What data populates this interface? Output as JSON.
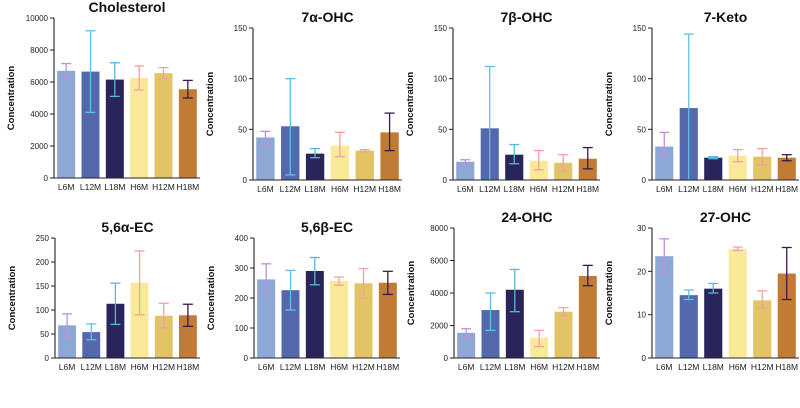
{
  "figure": {
    "colors": [
      "#8ea8d6",
      "#5468ad",
      "#29255b",
      "#fbe99a",
      "#e2c365",
      "#c07c34"
    ],
    "error_colors": [
      "#c08fe0",
      "#5fc0e6",
      "#56b8dc",
      "#f4a0a0",
      "#f0a3a3",
      "#3a1a4a"
    ]
  },
  "chart_data": [
    {
      "type": "bar",
      "title": "Cholesterol",
      "ylabel": "Concentration",
      "xlabel": "",
      "categories": [
        "L6M",
        "L12M",
        "L18M",
        "H6M",
        "H12M",
        "H18M"
      ],
      "values": [
        6700,
        6650,
        6150,
        6250,
        6550,
        5550
      ],
      "errors": [
        [
          6250,
          7150
        ],
        [
          4100,
          9200
        ],
        [
          5100,
          7200
        ],
        [
          5500,
          7000
        ],
        [
          6200,
          6900
        ],
        [
          5000,
          6100
        ]
      ],
      "ylim": [
        0,
        10000
      ],
      "yticks": [
        "0",
        "2000",
        "4000",
        "6000",
        "8000",
        "10000"
      ]
    },
    {
      "type": "bar",
      "title": "7α-OHC",
      "ylabel": "Concentration",
      "xlabel": "",
      "categories": [
        "L6M",
        "L12M",
        "L18M",
        "H6M",
        "H12M",
        "H18M"
      ],
      "values": [
        42,
        53,
        26,
        34,
        29,
        47
      ],
      "errors": [
        [
          35,
          48
        ],
        [
          5,
          100
        ],
        [
          22,
          31
        ],
        [
          23,
          47
        ],
        [
          28,
          30
        ],
        [
          29,
          66
        ]
      ],
      "ylim": [
        0,
        150
      ],
      "yticks": [
        "0",
        "50",
        "100",
        "150"
      ]
    },
    {
      "type": "bar",
      "title": "7β-OHC",
      "ylabel": "Concentration",
      "xlabel": "",
      "categories": [
        "L6M",
        "L12M",
        "L18M",
        "H6M",
        "H12M",
        "H18M"
      ],
      "values": [
        18,
        51,
        25,
        19,
        17,
        21
      ],
      "errors": [
        [
          15,
          20
        ],
        [
          0,
          112
        ],
        [
          16,
          35
        ],
        [
          10,
          29
        ],
        [
          9,
          25
        ],
        [
          11,
          32
        ]
      ],
      "ylim": [
        0,
        150
      ],
      "yticks": [
        "0",
        "50",
        "100",
        "150"
      ]
    },
    {
      "type": "bar",
      "title": "7-Keto",
      "ylabel": "Concentration",
      "xlabel": "",
      "categories": [
        "L6M",
        "L12M",
        "L18M",
        "H6M",
        "H12M",
        "H18M"
      ],
      "values": [
        33,
        71,
        22,
        24,
        23,
        22
      ],
      "errors": [
        [
          24,
          47
        ],
        [
          0,
          144
        ],
        [
          21,
          23
        ],
        [
          18,
          30
        ],
        [
          15,
          31
        ],
        [
          19,
          25
        ]
      ],
      "ylim": [
        0,
        150
      ],
      "yticks": [
        "0",
        "50",
        "100",
        "150"
      ]
    },
    {
      "type": "bar",
      "title": "5,6α-EC",
      "ylabel": "Concentration",
      "xlabel": "",
      "categories": [
        "L6M",
        "L12M",
        "L18M",
        "H6M",
        "H12M",
        "H18M"
      ],
      "values": [
        68,
        54,
        113,
        157,
        88,
        89
      ],
      "errors": [
        [
          44,
          92
        ],
        [
          38,
          71
        ],
        [
          70,
          156
        ],
        [
          90,
          223
        ],
        [
          63,
          114
        ],
        [
          66,
          112
        ]
      ],
      "ylim": [
        0,
        250
      ],
      "yticks": [
        "0",
        "50",
        "100",
        "150",
        "200",
        "250"
      ]
    },
    {
      "type": "bar",
      "title": "5,6β-EC",
      "ylabel": "Concentration",
      "xlabel": "",
      "categories": [
        "L6M",
        "L12M",
        "L18M",
        "H6M",
        "H12M",
        "H18M"
      ],
      "values": [
        262,
        226,
        290,
        257,
        249,
        251
      ],
      "errors": [
        [
          210,
          314
        ],
        [
          160,
          292
        ],
        [
          244,
          335
        ],
        [
          243,
          270
        ],
        [
          200,
          298
        ],
        [
          212,
          289
        ]
      ],
      "ylim": [
        0,
        400
      ],
      "yticks": [
        "0",
        "100",
        "200",
        "300",
        "400"
      ]
    },
    {
      "type": "bar",
      "title": "24-OHC",
      "ylabel": "Concentration",
      "xlabel": "",
      "categories": [
        "L6M",
        "L12M",
        "L18M",
        "H6M",
        "H12M",
        "H18M"
      ],
      "values": [
        1550,
        2950,
        4200,
        1250,
        2850,
        5050
      ],
      "errors": [
        [
          1300,
          1800
        ],
        [
          1700,
          4000
        ],
        [
          2850,
          5450
        ],
        [
          700,
          1700
        ],
        [
          2600,
          3100
        ],
        [
          4450,
          5700
        ]
      ],
      "ylim": [
        0,
        8000
      ],
      "yticks": [
        "0",
        "2000",
        "4000",
        "6000",
        "8000"
      ]
    },
    {
      "type": "bar",
      "title": "27-OHC",
      "ylabel": "Concentration",
      "xlabel": "",
      "categories": [
        "L6M",
        "L12M",
        "L18M",
        "H6M",
        "H12M",
        "H18M"
      ],
      "values": [
        23.5,
        14.5,
        16,
        25.2,
        13.3,
        19.5
      ],
      "errors": [
        [
          19.5,
          27.5
        ],
        [
          13.5,
          15.7
        ],
        [
          15,
          17.2
        ],
        [
          24.8,
          25.6
        ],
        [
          11.5,
          15.5
        ],
        [
          13.5,
          25.5
        ]
      ],
      "ylim": [
        0,
        30
      ],
      "yticks": [
        "0",
        "10",
        "20",
        "30"
      ]
    }
  ]
}
